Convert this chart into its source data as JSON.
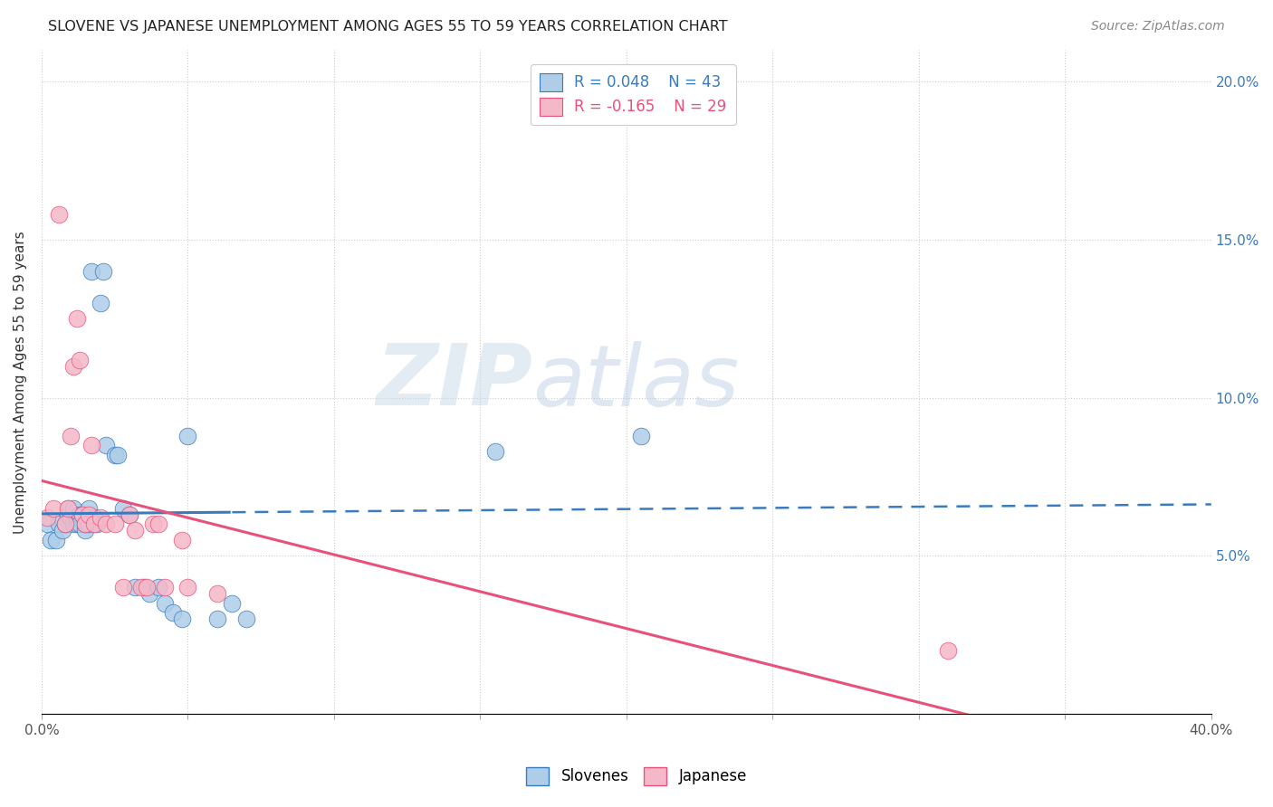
{
  "title": "SLOVENE VS JAPANESE UNEMPLOYMENT AMONG AGES 55 TO 59 YEARS CORRELATION CHART",
  "source": "Source: ZipAtlas.com",
  "ylabel": "Unemployment Among Ages 55 to 59 years",
  "xlim": [
    0.0,
    0.4
  ],
  "ylim": [
    0.0,
    0.21
  ],
  "xticks": [
    0.0,
    0.05,
    0.1,
    0.15,
    0.2,
    0.25,
    0.3,
    0.35,
    0.4
  ],
  "yticks": [
    0.0,
    0.05,
    0.1,
    0.15,
    0.2
  ],
  "slovene_R": 0.048,
  "slovene_N": 43,
  "japanese_R": -0.165,
  "japanese_N": 29,
  "slovene_color": "#aecde8",
  "japanese_color": "#f5b8c8",
  "slovene_line_color": "#3a7bbf",
  "japanese_line_color": "#e8527a",
  "watermark_zip": "ZIP",
  "watermark_atlas": "atlas",
  "slovene_points_x": [
    0.002,
    0.003,
    0.005,
    0.006,
    0.007,
    0.008,
    0.009,
    0.009,
    0.01,
    0.011,
    0.011,
    0.012,
    0.012,
    0.013,
    0.013,
    0.014,
    0.015,
    0.015,
    0.016,
    0.016,
    0.017,
    0.018,
    0.019,
    0.02,
    0.021,
    0.022,
    0.025,
    0.026,
    0.028,
    0.03,
    0.032,
    0.035,
    0.037,
    0.04,
    0.042,
    0.045,
    0.048,
    0.05,
    0.06,
    0.065,
    0.07,
    0.155,
    0.205
  ],
  "slovene_points_y": [
    0.06,
    0.055,
    0.055,
    0.06,
    0.058,
    0.06,
    0.063,
    0.065,
    0.062,
    0.065,
    0.06,
    0.06,
    0.062,
    0.063,
    0.06,
    0.063,
    0.058,
    0.06,
    0.065,
    0.06,
    0.14,
    0.062,
    0.06,
    0.13,
    0.14,
    0.085,
    0.082,
    0.082,
    0.065,
    0.063,
    0.04,
    0.04,
    0.038,
    0.04,
    0.035,
    0.032,
    0.03,
    0.088,
    0.03,
    0.035,
    0.03,
    0.083,
    0.088
  ],
  "japanese_points_x": [
    0.002,
    0.004,
    0.006,
    0.008,
    0.009,
    0.01,
    0.011,
    0.012,
    0.013,
    0.014,
    0.015,
    0.016,
    0.017,
    0.018,
    0.02,
    0.022,
    0.025,
    0.028,
    0.03,
    0.032,
    0.034,
    0.036,
    0.038,
    0.04,
    0.042,
    0.048,
    0.05,
    0.06,
    0.31
  ],
  "japanese_points_y": [
    0.062,
    0.065,
    0.158,
    0.06,
    0.065,
    0.088,
    0.11,
    0.125,
    0.112,
    0.063,
    0.06,
    0.063,
    0.085,
    0.06,
    0.062,
    0.06,
    0.06,
    0.04,
    0.063,
    0.058,
    0.04,
    0.04,
    0.06,
    0.06,
    0.04,
    0.055,
    0.04,
    0.038,
    0.02
  ],
  "slovene_line_solid_end": 0.065,
  "slovene_line_dashed_start": 0.065
}
